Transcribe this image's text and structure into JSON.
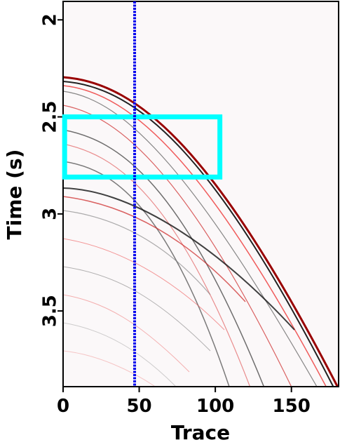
{
  "chart_data": {
    "type": "image",
    "xlabel": "Trace",
    "ylabel": "Time (s)",
    "xlim": [
      0,
      181
    ],
    "ylim": [
      1.905,
      3.89
    ],
    "y_inverted": true,
    "xticks": [
      0,
      50,
      100,
      150
    ],
    "yticks": [
      2,
      2.5,
      3,
      3.5
    ],
    "vertical_line": {
      "x": 47,
      "color": "#0000ee"
    },
    "rectangle": {
      "x": [
        1,
        103
      ],
      "y": [
        2.5,
        2.81
      ],
      "color": "#00ffff"
    }
  }
}
